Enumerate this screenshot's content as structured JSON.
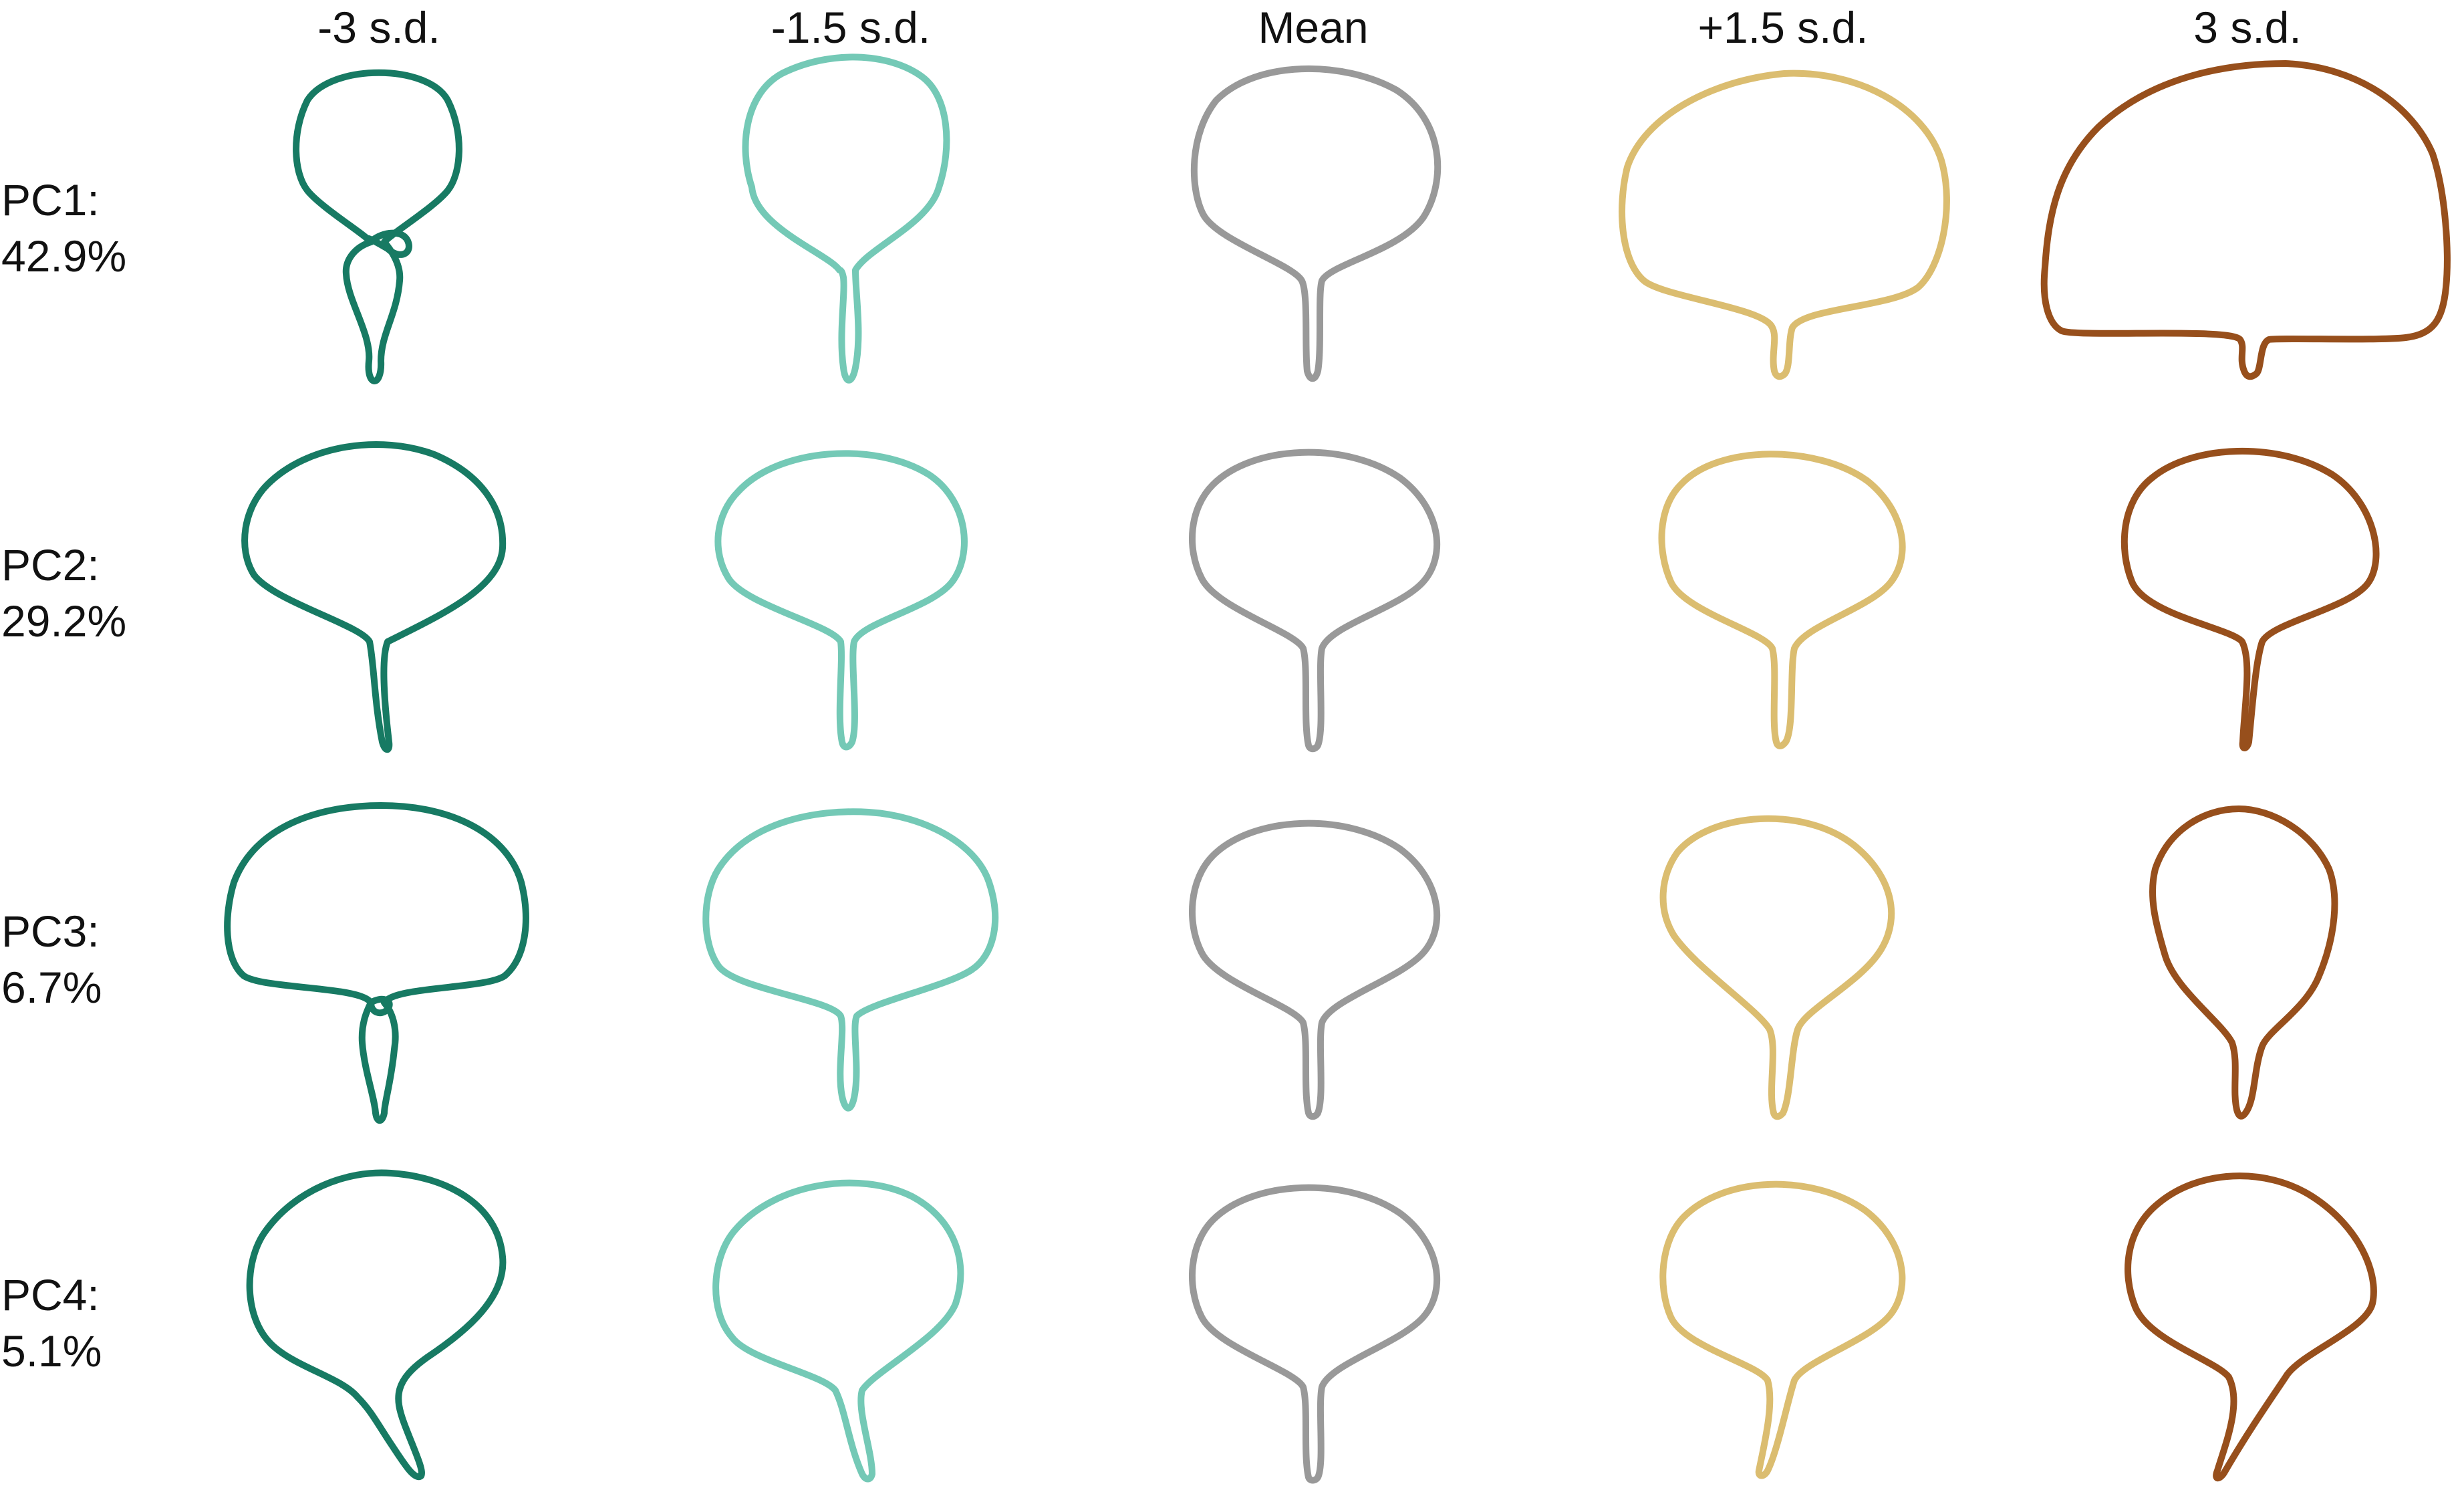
{
  "columns": [
    {
      "label": "-3 s.d.",
      "color": "#177a63"
    },
    {
      "label": "-1.5 s.d.",
      "color": "#74c9b6"
    },
    {
      "label": "Mean",
      "color": "#999999"
    },
    {
      "label": "+1.5 s.d.",
      "color": "#dbbd70"
    },
    {
      "label": "3 s.d.",
      "color": "#974f1c"
    }
  ],
  "rows": [
    {
      "component": "PC1:",
      "variance": "42.9%"
    },
    {
      "component": "PC2:",
      "variance": "29.2%"
    },
    {
      "component": "PC3:",
      "variance": "6.7%"
    },
    {
      "component": "PC4:",
      "variance": "5.1%"
    }
  ]
}
